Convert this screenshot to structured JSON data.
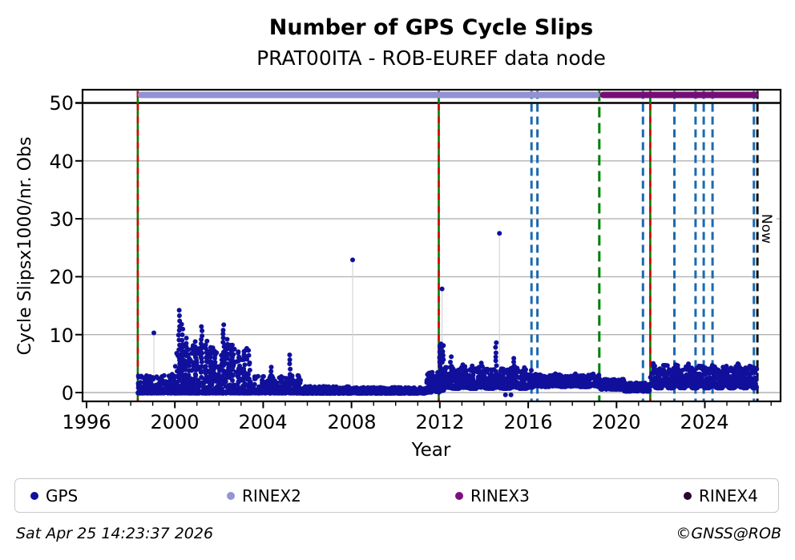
{
  "header": {
    "title": "Number of GPS Cycle Slips",
    "subtitle": "PRAT00ITA - ROB-EUREF data node"
  },
  "footer": {
    "timestamp": "Sat Apr 25 14:23:37 2026",
    "copyright": "©GNSS@ROB"
  },
  "legend": [
    {
      "label": "GPS",
      "color": "#10109c"
    },
    {
      "label": "RINEX2",
      "color": "#9595d6"
    },
    {
      "label": "RINEX3",
      "color": "#7d107d"
    },
    {
      "label": "RINEX4",
      "color": "#2c082c"
    }
  ],
  "chart_data": {
    "type": "scatter",
    "title": "Number of GPS Cycle Slips",
    "subtitle": "PRAT00ITA - ROB-EUREF data node",
    "xlabel": "Year",
    "ylabel": "Cycle Slipsx1000/nr. Obs",
    "xlim": [
      1995.82,
      2027.43
    ],
    "ylim": [
      -1.52,
      52.28
    ],
    "xticks": [
      1996,
      2000,
      2004,
      2008,
      2012,
      2016,
      2020,
      2024
    ],
    "xminor_step": 1,
    "yticks": [
      0,
      10,
      20,
      30,
      40,
      50
    ],
    "grid_y": [
      0,
      10,
      20,
      30,
      40
    ],
    "hline_black": 50,
    "grid": "horizontal-only",
    "legend_position": "bottom",
    "series_name": "GPS",
    "point_color": "#10109c",
    "now": {
      "year": 2026.38,
      "label": "Now"
    },
    "colors": {
      "green": "#007d00",
      "red": "#dd0000",
      "blue": "#1b6ab0",
      "now": "#111111",
      "grid": "#b2b2b2",
      "stem": "#d6d6d6",
      "axis": "#000000"
    },
    "bars": [
      {
        "name": "RINEX2",
        "start": 1998.32,
        "end": 2019.25,
        "color": "#9191d3"
      },
      {
        "name": "RINEX3",
        "start": 2019.25,
        "end": 2026.42,
        "color": "#760d76"
      }
    ],
    "events": [
      {
        "year": 1998.32,
        "kind": "green-red"
      },
      {
        "year": 2011.95,
        "kind": "green-red"
      },
      {
        "year": 2016.15,
        "kind": "blue"
      },
      {
        "year": 2016.42,
        "kind": "blue"
      },
      {
        "year": 2019.22,
        "kind": "green-dash"
      },
      {
        "year": 2021.2,
        "kind": "blue"
      },
      {
        "year": 2021.53,
        "kind": "green-red"
      },
      {
        "year": 2022.62,
        "kind": "blue"
      },
      {
        "year": 2023.58,
        "kind": "blue"
      },
      {
        "year": 2023.95,
        "kind": "blue"
      },
      {
        "year": 2024.35,
        "kind": "blue"
      },
      {
        "year": 2026.22,
        "kind": "blue"
      },
      {
        "year": 2026.38,
        "kind": "now"
      }
    ],
    "band_segments": [
      {
        "x0": 1998.32,
        "x1": 2000.0,
        "lo": -0.1,
        "hi": 3.2,
        "k": 2.6,
        "n": 240
      },
      {
        "x0": 2000.0,
        "x1": 2003.4,
        "lo": -0.1,
        "hi": 8.5,
        "k": 3.0,
        "n": 520
      },
      {
        "x0": 2003.4,
        "x1": 2005.7,
        "lo": -0.1,
        "hi": 3.0,
        "k": 2.8,
        "n": 280
      },
      {
        "x0": 2005.7,
        "x1": 2007.9,
        "lo": -0.15,
        "hi": 1.1,
        "k": 1.8,
        "n": 240
      },
      {
        "x0": 2007.9,
        "x1": 2011.4,
        "lo": -0.15,
        "hi": 0.9,
        "k": 1.8,
        "n": 390
      },
      {
        "x0": 2011.4,
        "x1": 2011.97,
        "lo": 0.0,
        "hi": 3.5,
        "k": 1.8,
        "n": 85
      },
      {
        "x0": 2011.97,
        "x1": 2012.18,
        "lo": 0.3,
        "hi": 8.3,
        "k": 1.6,
        "n": 50
      },
      {
        "x0": 2012.18,
        "x1": 2016.2,
        "lo": 0.7,
        "hi": 4.3,
        "k": 2.2,
        "n": 600,
        "wob": 0.35,
        "per": 0.75
      },
      {
        "x0": 2016.2,
        "x1": 2019.25,
        "lo": 1.0,
        "hi": 3.1,
        "k": 1.8,
        "n": 440,
        "wob": 0.22,
        "per": 0.85
      },
      {
        "x0": 2019.25,
        "x1": 2020.35,
        "lo": 0.55,
        "hi": 2.3,
        "k": 1.7,
        "n": 160
      },
      {
        "x0": 2020.35,
        "x1": 2021.5,
        "lo": 0.2,
        "hi": 1.7,
        "k": 1.6,
        "n": 165
      },
      {
        "x0": 2021.5,
        "x1": 2026.35,
        "lo": 0.8,
        "hi": 4.6,
        "k": 2.0,
        "n": 740,
        "wob": 0.6,
        "per": 0.55
      }
    ],
    "spikes": [
      [
        2000.2,
        14.2
      ],
      [
        2000.33,
        11.8
      ],
      [
        2000.5,
        9.4
      ],
      [
        2000.62,
        7.4
      ],
      [
        2000.95,
        8.8
      ],
      [
        2001.2,
        11.4
      ],
      [
        2001.42,
        8.9
      ],
      [
        2001.6,
        7.8
      ],
      [
        2001.8,
        6.6
      ],
      [
        2002.2,
        11.7
      ],
      [
        2002.4,
        9.2
      ],
      [
        2002.62,
        8.2
      ],
      [
        2002.9,
        6.8
      ],
      [
        2003.15,
        7.1
      ],
      [
        2004.35,
        4.4
      ],
      [
        2005.2,
        6.5
      ],
      [
        2012.02,
        8.4
      ],
      [
        2012.5,
        6.2
      ],
      [
        2013.05,
        4.8
      ],
      [
        2013.5,
        4.6
      ],
      [
        2013.9,
        5.1
      ],
      [
        2014.55,
        8.6
      ],
      [
        2015.35,
        5.9
      ],
      [
        2015.8,
        4.3
      ]
    ],
    "outliers": [
      [
        1999.05,
        10.3
      ],
      [
        2008.05,
        22.9
      ],
      [
        2012.1,
        17.9
      ],
      [
        2014.7,
        27.5
      ],
      [
        2014.97,
        -0.4
      ],
      [
        2015.22,
        -0.4
      ]
    ],
    "stems": [
      [
        1999.05,
        10.3
      ],
      [
        2000.2,
        14.2
      ],
      [
        2001.2,
        11.4
      ],
      [
        2002.2,
        11.7
      ],
      [
        2005.2,
        6.5
      ],
      [
        2008.05,
        22.9
      ],
      [
        2012.1,
        17.9
      ],
      [
        2013.05,
        4.8
      ],
      [
        2013.9,
        5.1
      ],
      [
        2014.55,
        8.6
      ],
      [
        2014.7,
        27.5
      ],
      [
        2015.35,
        5.9
      ]
    ]
  }
}
